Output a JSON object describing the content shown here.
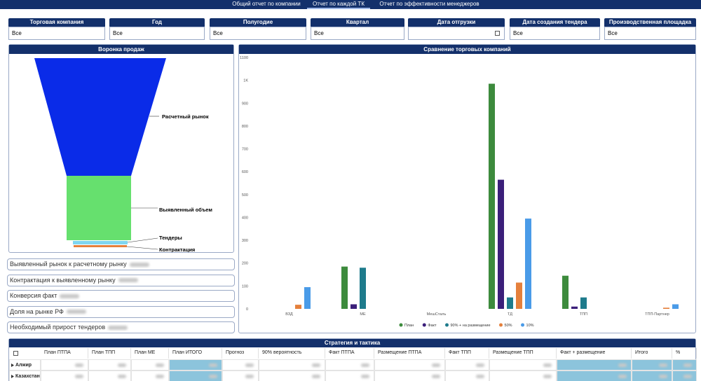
{
  "nav": {
    "tabs": [
      "Общий отчет по компании",
      "Отчет по каждой ТК",
      "Отчет по эффективности менеджеров"
    ],
    "active": 1
  },
  "filters": [
    {
      "label": "Торговая компания",
      "value": "Все"
    },
    {
      "label": "Год",
      "value": "Все"
    },
    {
      "label": "Полугодие",
      "value": "Все"
    },
    {
      "label": "Квартал",
      "value": "Все"
    },
    {
      "label": "Дата отгрузки"
    },
    {
      "label": "Дата создания тендера",
      "value": "Все"
    },
    {
      "label": "Производственная площадка",
      "value": "Все"
    }
  ],
  "funnel": {
    "title": "Воронка продаж",
    "stages": [
      "Расчетный рынок",
      "Выявленный объем",
      "Тендеры",
      "Контрактация"
    ]
  },
  "metrics": [
    "Выявленный рынок к расчетному рынку",
    "Контрактация к выявленному рынку",
    "Конверсия факт",
    "Доля на рынке РФ",
    "Необходимый прирост тендеров"
  ],
  "chart_data": {
    "type": "bar",
    "title": "Сравнение торговых компаний",
    "categories": [
      "ВЗД",
      "МЕ",
      "МешСталь",
      "ТД",
      "ТПП",
      "ТПП-Партнер"
    ],
    "series": [
      {
        "name": "План",
        "color": "#3d8b3d",
        "values": [
          0,
          185,
          0,
          985,
          145,
          0
        ]
      },
      {
        "name": "Факт",
        "color": "#3b1f7a",
        "values": [
          0,
          20,
          0,
          565,
          10,
          0
        ]
      },
      {
        "name": "90% + на размещение",
        "color": "#1e7b8c",
        "values": [
          0,
          180,
          0,
          50,
          50,
          0
        ]
      },
      {
        "name": "50%",
        "color": "#e5803c",
        "values": [
          18,
          0,
          0,
          115,
          0,
          5
        ]
      },
      {
        "name": "10%",
        "color": "#4a9be8",
        "values": [
          95,
          0,
          0,
          395,
          0,
          20
        ]
      }
    ],
    "ylim": [
      0,
      1100
    ],
    "yticks": [
      0,
      100,
      200,
      300,
      400,
      500,
      600,
      700,
      800,
      900,
      {
        "value": 1000,
        "label": "1K"
      },
      1100
    ],
    "grid": false
  },
  "table": {
    "title": "Стратегия и тактика",
    "columns": [
      "План ПТПА",
      "План ТПП",
      "План МЕ",
      "План ИТОГО",
      "Прогноз",
      "90% вероятность",
      "Факт ПТПА",
      "Размещение ПТПА",
      "Факт ТПП",
      "Размещение ТПП",
      "Факт + размещение",
      "Итого",
      "%"
    ],
    "rows": [
      "Алжир",
      "Казахстан"
    ]
  }
}
